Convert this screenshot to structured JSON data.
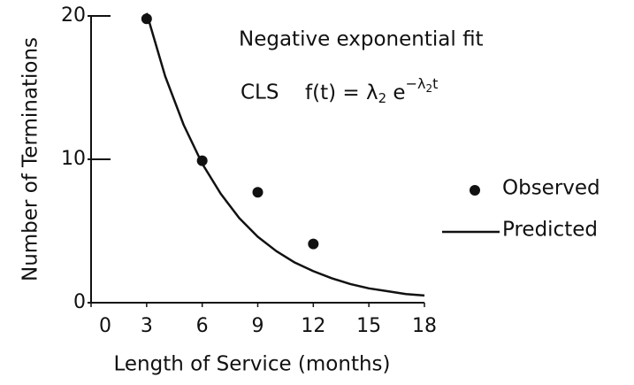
{
  "chart_data": {
    "type": "scatter",
    "title": "Negative exponential fit",
    "subtitle": "CLS",
    "equation": [
      "f(t) = λ",
      "2",
      " e",
      "−λ",
      "2",
      "t"
    ],
    "x_label": "Length of Service (months)",
    "y_label": "Number of Terminations",
    "xlim": [
      0,
      18
    ],
    "xticks": [
      0,
      3,
      6,
      9,
      12,
      15,
      18
    ],
    "ylim": [
      0,
      20
    ],
    "yticks": [
      0,
      10,
      20
    ],
    "grid": false,
    "legend": "right",
    "series": [
      {
        "name": "Observed",
        "type": "scatter",
        "color": "#111111",
        "x": [
          3,
          6,
          9,
          12
        ],
        "values": [
          19.8,
          9.9,
          7.7,
          4.1
        ]
      },
      {
        "name": "Predicted",
        "type": "line",
        "color": "#111111",
        "x": [
          3,
          4,
          5,
          6,
          7,
          8,
          9,
          10,
          11,
          12,
          13,
          14,
          15,
          16,
          17,
          18
        ],
        "values": [
          20.2,
          15.8,
          12.4,
          9.7,
          7.6,
          5.9,
          4.6,
          3.6,
          2.8,
          2.2,
          1.7,
          1.3,
          1.0,
          0.8,
          0.6,
          0.5
        ]
      }
    ]
  }
}
